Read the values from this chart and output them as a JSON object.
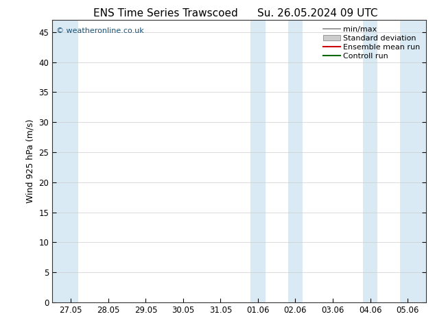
{
  "title_left": "ENS Time Series Trawscoed",
  "title_right": "Su. 26.05.2024 09 UTC",
  "ylabel": "Wind 925 hPa (m/s)",
  "watermark": "© weatheronline.co.uk",
  "watermark_color": "#1a5276",
  "ylim": [
    0,
    47
  ],
  "yticks": [
    0,
    5,
    10,
    15,
    20,
    25,
    30,
    35,
    40,
    45
  ],
  "x_tick_labels": [
    "27.05",
    "28.05",
    "29.05",
    "30.05",
    "31.05",
    "01.06",
    "02.06",
    "03.06",
    "04.06",
    "05.06"
  ],
  "shade_color": "#daeaf5",
  "bg_color": "#ffffff",
  "plot_bg_color": "#ffffff",
  "title_fontsize": 11,
  "label_fontsize": 9,
  "tick_fontsize": 8.5,
  "watermark_fontsize": 8,
  "legend_fontsize": 8
}
